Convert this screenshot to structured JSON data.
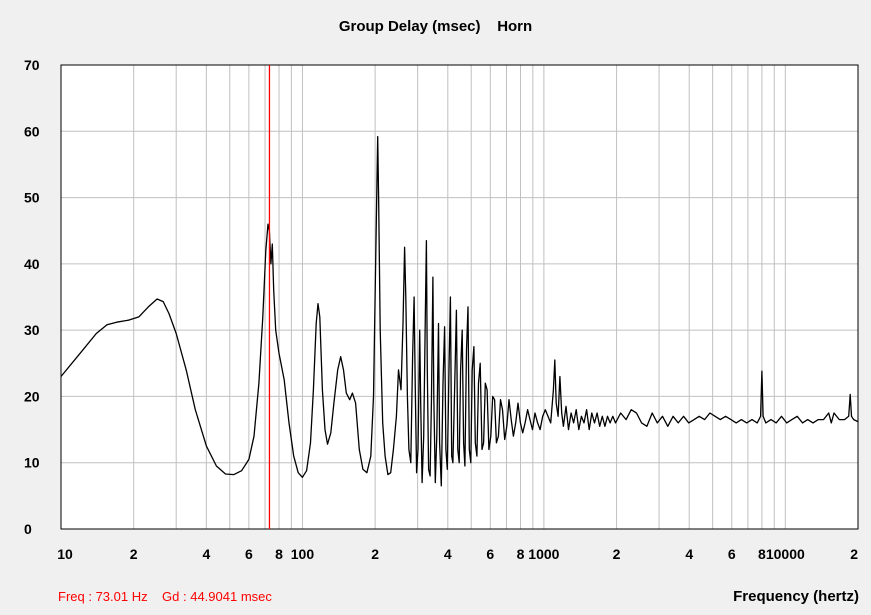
{
  "chart_data": {
    "type": "line",
    "title": "Group Delay (msec)    Horn",
    "xlabel": "Frequency (hertz)",
    "ylabel": "",
    "x_scale": "log",
    "xlim": [
      10,
      20000
    ],
    "ylim": [
      0,
      70
    ],
    "grid": true,
    "y_ticks": [
      0,
      10,
      20,
      30,
      40,
      50,
      60,
      70
    ],
    "x_tick_labels": [
      {
        "x": 10,
        "label": "10"
      },
      {
        "x": 20,
        "label": "2"
      },
      {
        "x": 40,
        "label": "4"
      },
      {
        "x": 60,
        "label": "6"
      },
      {
        "x": 80,
        "label": "8"
      },
      {
        "x": 100,
        "label": "100"
      },
      {
        "x": 200,
        "label": "2"
      },
      {
        "x": 400,
        "label": "4"
      },
      {
        "x": 600,
        "label": "6"
      },
      {
        "x": 800,
        "label": "8"
      },
      {
        "x": 1000,
        "label": "1000"
      },
      {
        "x": 2000,
        "label": "2"
      },
      {
        "x": 4000,
        "label": "4"
      },
      {
        "x": 6000,
        "label": "6"
      },
      {
        "x": 8000,
        "label": "8"
      },
      {
        "x": 10000,
        "label": "10000"
      },
      {
        "x": 20000,
        "label": "2"
      }
    ],
    "series": [
      {
        "color": "#000000",
        "points": [
          [
            10,
            23
          ],
          [
            12,
            26.5
          ],
          [
            14,
            29.5
          ],
          [
            15.5,
            30.8
          ],
          [
            17,
            31.2
          ],
          [
            19,
            31.5
          ],
          [
            21,
            32
          ],
          [
            23,
            33.5
          ],
          [
            25,
            34.7
          ],
          [
            26.5,
            34.3
          ],
          [
            28,
            32.5
          ],
          [
            30,
            29.5
          ],
          [
            33,
            24
          ],
          [
            36,
            18
          ],
          [
            40,
            12.5
          ],
          [
            44,
            9.5
          ],
          [
            48,
            8.3
          ],
          [
            52,
            8.2
          ],
          [
            56,
            8.8
          ],
          [
            60,
            10.5
          ],
          [
            63,
            14
          ],
          [
            66,
            22
          ],
          [
            68.5,
            32
          ],
          [
            70.5,
            42
          ],
          [
            72,
            46
          ],
          [
            73,
            44.9
          ],
          [
            74,
            40
          ],
          [
            75,
            43
          ],
          [
            76,
            36
          ],
          [
            77.5,
            30
          ],
          [
            80,
            26.5
          ],
          [
            84,
            22.5
          ],
          [
            88,
            16
          ],
          [
            92,
            11
          ],
          [
            96,
            8.5
          ],
          [
            100,
            7.8
          ],
          [
            104,
            8.8
          ],
          [
            108,
            13
          ],
          [
            111,
            21
          ],
          [
            114,
            31
          ],
          [
            116,
            34
          ],
          [
            118,
            32
          ],
          [
            121,
            21
          ],
          [
            124,
            15
          ],
          [
            127,
            12.8
          ],
          [
            131,
            14.5
          ],
          [
            135,
            19
          ],
          [
            140,
            24
          ],
          [
            144,
            26
          ],
          [
            148,
            24
          ],
          [
            152,
            20.5
          ],
          [
            157,
            19.5
          ],
          [
            161,
            20.5
          ],
          [
            166,
            19
          ],
          [
            172,
            12
          ],
          [
            178,
            9
          ],
          [
            185,
            8.5
          ],
          [
            192,
            11
          ],
          [
            197,
            20
          ],
          [
            200,
            35
          ],
          [
            203,
            50
          ],
          [
            205,
            59.2
          ],
          [
            207,
            49
          ],
          [
            210,
            30
          ],
          [
            215,
            16
          ],
          [
            220,
            11
          ],
          [
            226,
            8.2
          ],
          [
            232,
            8.5
          ],
          [
            238,
            12
          ],
          [
            245,
            17
          ],
          [
            250,
            24
          ],
          [
            256,
            21
          ],
          [
            261,
            31
          ],
          [
            265,
            42.5
          ],
          [
            268,
            35
          ],
          [
            272,
            20
          ],
          [
            276,
            12
          ],
          [
            281,
            10
          ],
          [
            286,
            26
          ],
          [
            290,
            35
          ],
          [
            293,
            22
          ],
          [
            297,
            8.5
          ],
          [
            301,
            12
          ],
          [
            306,
            30
          ],
          [
            309,
            19
          ],
          [
            313,
            7
          ],
          [
            318,
            14
          ],
          [
            323,
            33
          ],
          [
            326,
            43.5
          ],
          [
            329,
            24
          ],
          [
            333,
            9
          ],
          [
            338,
            8
          ],
          [
            342,
            19
          ],
          [
            347,
            38
          ],
          [
            350,
            20
          ],
          [
            355,
            7
          ],
          [
            360,
            14
          ],
          [
            366,
            31
          ],
          [
            370,
            13
          ],
          [
            376,
            6.5
          ],
          [
            382,
            22
          ],
          [
            388,
            30.5
          ],
          [
            393,
            12
          ],
          [
            398,
            9
          ],
          [
            405,
            25
          ],
          [
            410,
            35
          ],
          [
            415,
            11
          ],
          [
            420,
            10
          ],
          [
            428,
            23
          ],
          [
            434,
            33
          ],
          [
            440,
            12
          ],
          [
            446,
            10
          ],
          [
            452,
            24
          ],
          [
            459,
            30
          ],
          [
            465,
            13
          ],
          [
            471,
            9.5
          ],
          [
            478,
            27
          ],
          [
            485,
            33.5
          ],
          [
            491,
            12
          ],
          [
            498,
            10
          ],
          [
            505,
            24
          ],
          [
            513,
            27.5
          ],
          [
            520,
            13
          ],
          [
            528,
            11
          ],
          [
            536,
            22
          ],
          [
            545,
            25
          ],
          [
            554,
            12
          ],
          [
            563,
            13
          ],
          [
            572,
            22
          ],
          [
            582,
            21
          ],
          [
            592,
            12
          ],
          [
            603,
            14
          ],
          [
            614,
            20
          ],
          [
            625,
            19.5
          ],
          [
            636,
            13
          ],
          [
            648,
            14
          ],
          [
            661,
            19.5
          ],
          [
            674,
            18
          ],
          [
            688,
            13.5
          ],
          [
            702,
            15.5
          ],
          [
            717,
            19.5
          ],
          [
            732,
            16.5
          ],
          [
            748,
            14
          ],
          [
            764,
            16
          ],
          [
            781,
            19
          ],
          [
            799,
            16
          ],
          [
            817,
            14.5
          ],
          [
            836,
            16
          ],
          [
            856,
            18
          ],
          [
            876,
            16.5
          ],
          [
            897,
            15
          ],
          [
            919,
            17.5
          ],
          [
            942,
            16
          ],
          [
            965,
            15
          ],
          [
            989,
            17
          ],
          [
            1014,
            18
          ],
          [
            1040,
            17
          ],
          [
            1067,
            16
          ],
          [
            1095,
            21
          ],
          [
            1110,
            25.5
          ],
          [
            1125,
            19
          ],
          [
            1145,
            17
          ],
          [
            1165,
            23
          ],
          [
            1185,
            17.5
          ],
          [
            1205,
            15.5
          ],
          [
            1235,
            18.5
          ],
          [
            1265,
            15
          ],
          [
            1296,
            17.5
          ],
          [
            1328,
            16
          ],
          [
            1361,
            18
          ],
          [
            1395,
            15
          ],
          [
            1430,
            17
          ],
          [
            1466,
            16
          ],
          [
            1503,
            18
          ],
          [
            1541,
            15
          ],
          [
            1580,
            17.5
          ],
          [
            1620,
            16
          ],
          [
            1661,
            17.5
          ],
          [
            1703,
            15.5
          ],
          [
            1746,
            17
          ],
          [
            1790,
            15.5
          ],
          [
            1835,
            17
          ],
          [
            1881,
            16
          ],
          [
            1930,
            17
          ],
          [
            1980,
            16
          ],
          [
            2080,
            17.5
          ],
          [
            2190,
            16.5
          ],
          [
            2300,
            18
          ],
          [
            2420,
            17.5
          ],
          [
            2540,
            16
          ],
          [
            2670,
            15.5
          ],
          [
            2810,
            17.5
          ],
          [
            2950,
            16
          ],
          [
            3100,
            17
          ],
          [
            3260,
            15.5
          ],
          [
            3430,
            17
          ],
          [
            3600,
            16
          ],
          [
            3790,
            17
          ],
          [
            3980,
            16
          ],
          [
            4190,
            16.5
          ],
          [
            4400,
            17
          ],
          [
            4630,
            16.5
          ],
          [
            4870,
            17.5
          ],
          [
            5120,
            17
          ],
          [
            5380,
            16.5
          ],
          [
            5660,
            17
          ],
          [
            5950,
            16.5
          ],
          [
            6260,
            16
          ],
          [
            6580,
            16.5
          ],
          [
            6920,
            16
          ],
          [
            7280,
            16.5
          ],
          [
            7650,
            16
          ],
          [
            7900,
            17
          ],
          [
            8000,
            23.8
          ],
          [
            8090,
            17
          ],
          [
            8300,
            16
          ],
          [
            8720,
            16.5
          ],
          [
            9170,
            16
          ],
          [
            9640,
            17
          ],
          [
            10130,
            16
          ],
          [
            10650,
            16.5
          ],
          [
            11200,
            17
          ],
          [
            11780,
            16
          ],
          [
            12380,
            16.5
          ],
          [
            13020,
            16
          ],
          [
            13690,
            16.5
          ],
          [
            14390,
            16.5
          ],
          [
            15130,
            17.5
          ],
          [
            15500,
            16
          ],
          [
            15910,
            17.5
          ],
          [
            16730,
            16.5
          ],
          [
            17580,
            16.5
          ],
          [
            18300,
            17
          ],
          [
            18560,
            20.3
          ],
          [
            18800,
            17
          ],
          [
            19200,
            16.5
          ],
          [
            20000,
            16.2
          ]
        ]
      }
    ],
    "cursor": {
      "x": 73.01,
      "color": "#ff0000"
    }
  },
  "readout": {
    "text": "Freq : 73.01 Hz    Gd : 44.9041 msec"
  },
  "colors": {
    "background": "#f0f0f0",
    "plot_background": "#ffffff",
    "grid": "#c0c0c0",
    "trace": "#000000",
    "cursor": "#ff0000"
  }
}
